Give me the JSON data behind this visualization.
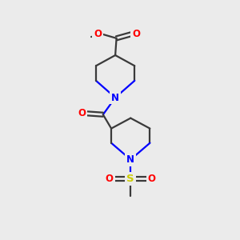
{
  "background_color": "#ebebeb",
  "bond_color": "#3a3a3a",
  "nitrogen_color": "#0000ff",
  "oxygen_color": "#ff0000",
  "sulfur_color": "#cccc00",
  "line_width": 1.6,
  "figsize": [
    3.0,
    3.0
  ],
  "dpi": 100,
  "xlim": [
    0,
    10
  ],
  "ylim": [
    0,
    10
  ]
}
